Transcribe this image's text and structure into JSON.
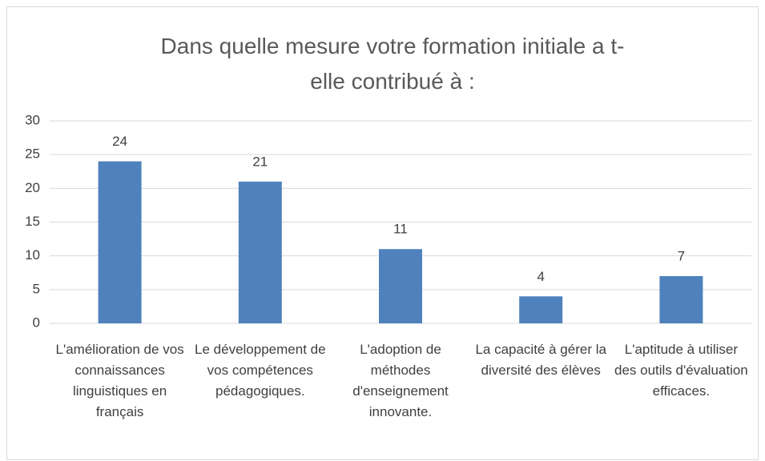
{
  "chart_data": {
    "type": "bar",
    "title": "Dans quelle mesure votre formation initiale a t-elle contribué à :",
    "categories": [
      "L'amélioration de vos connaissances linguistiques en français",
      "Le développement de vos compétences pédagogiques.",
      "L'adoption de méthodes d'enseignement innovante.",
      "La capacité à gérer la diversité des élèves",
      "L'aptitude à utiliser des outils d'évaluation efficaces."
    ],
    "values": [
      24,
      21,
      11,
      4,
      7
    ],
    "color": "#4f81bd",
    "ylim": [
      0,
      30
    ],
    "yticks": [
      0,
      5,
      10,
      15,
      20,
      25,
      30
    ],
    "grid": true
  }
}
